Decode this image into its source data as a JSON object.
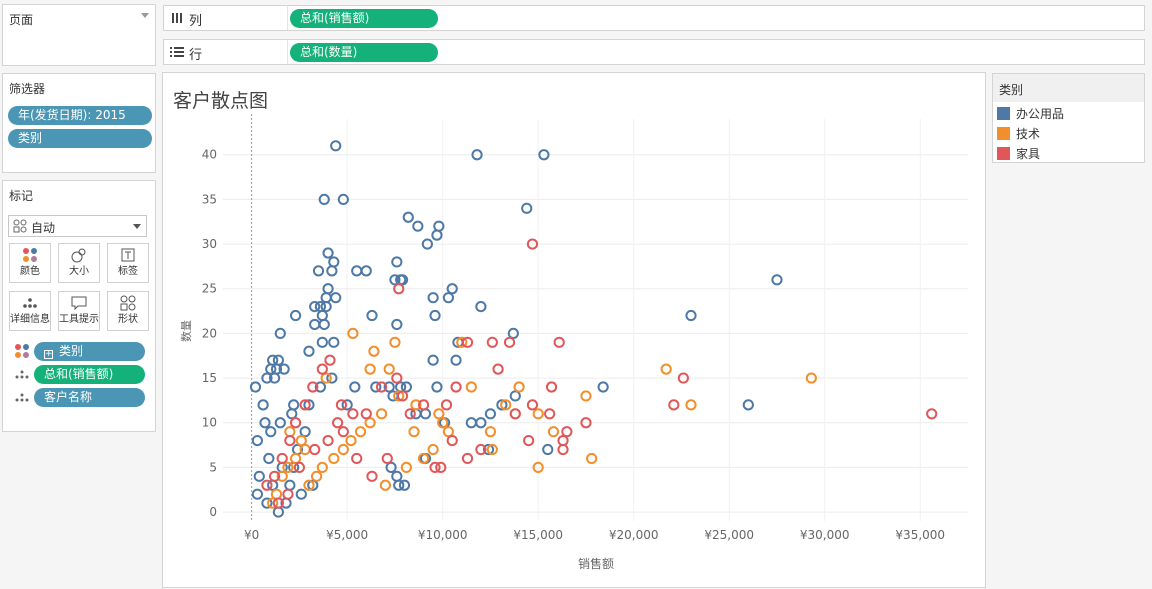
{
  "pages_panel": {
    "title": "页面"
  },
  "filters": {
    "title": "筛选器",
    "items": [
      "年(发货日期): 2015",
      "类别"
    ]
  },
  "marks": {
    "title": "标记",
    "mark_type": "自动",
    "buttons": [
      "颜色",
      "大小",
      "标签",
      "详细信息",
      "工具提示",
      "形状"
    ],
    "fields": [
      "类别",
      "总和(销售额)",
      "客户名称"
    ]
  },
  "columns_shelf": {
    "label": "列",
    "pill": "总和(销售额)"
  },
  "rows_shelf": {
    "label": "行",
    "pill": "总和(数量)"
  },
  "legend": {
    "title": "类别",
    "items": [
      {
        "name": "办公用品",
        "color": "#4e79a7"
      },
      {
        "name": "技术",
        "color": "#f28e2b"
      },
      {
        "name": "家具",
        "color": "#e15759"
      }
    ]
  },
  "chart": {
    "title": "客户散点图"
  },
  "chart_data": {
    "type": "scatter",
    "title": "客户散点图",
    "xlabel": "销售额",
    "ylabel": "数量",
    "xlim": [
      -1500,
      37500
    ],
    "ylim": [
      -1,
      44
    ],
    "x_ticks": [
      0,
      5000,
      10000,
      15000,
      20000,
      25000,
      30000,
      35000
    ],
    "x_tick_labels": [
      "¥0",
      "¥5,000",
      "¥10,000",
      "¥15,000",
      "¥20,000",
      "¥25,000",
      "¥30,000",
      "¥35,000"
    ],
    "y_ticks": [
      0,
      5,
      10,
      15,
      20,
      25,
      30,
      35,
      40
    ],
    "y_tick_labels": [
      "0",
      "5",
      "10",
      "15",
      "20",
      "25",
      "30",
      "35",
      "40"
    ],
    "grid": true,
    "legend_position": "right",
    "series": [
      {
        "name": "办公用品",
        "color": "#4e79a7",
        "points": [
          [
            4400,
            41
          ],
          [
            11800,
            40
          ],
          [
            15300,
            40
          ],
          [
            3800,
            35
          ],
          [
            4800,
            35
          ],
          [
            14400,
            34
          ],
          [
            8200,
            33
          ],
          [
            9800,
            32
          ],
          [
            8700,
            32
          ],
          [
            9700,
            31
          ],
          [
            9200,
            30
          ],
          [
            4000,
            29
          ],
          [
            4300,
            28
          ],
          [
            7600,
            28
          ],
          [
            3500,
            27
          ],
          [
            5500,
            27
          ],
          [
            6000,
            27
          ],
          [
            4200,
            27
          ],
          [
            27500,
            26
          ],
          [
            7800,
            26
          ],
          [
            7900,
            26
          ],
          [
            7500,
            26
          ],
          [
            4000,
            25
          ],
          [
            10500,
            25
          ],
          [
            3900,
            24
          ],
          [
            4400,
            24
          ],
          [
            9500,
            24
          ],
          [
            10300,
            24
          ],
          [
            3300,
            23
          ],
          [
            3900,
            23
          ],
          [
            3600,
            23
          ],
          [
            12000,
            23
          ],
          [
            6300,
            22
          ],
          [
            23000,
            22
          ],
          [
            9600,
            22
          ],
          [
            2300,
            22
          ],
          [
            3700,
            22
          ],
          [
            3300,
            21
          ],
          [
            3800,
            21
          ],
          [
            7600,
            21
          ],
          [
            1500,
            20
          ],
          [
            13700,
            20
          ],
          [
            3700,
            19
          ],
          [
            4300,
            19
          ],
          [
            10800,
            19
          ],
          [
            3000,
            18
          ],
          [
            1100,
            17
          ],
          [
            1400,
            17
          ],
          [
            9500,
            17
          ],
          [
            10700,
            17
          ],
          [
            1000,
            16
          ],
          [
            1300,
            16
          ],
          [
            1700,
            16
          ],
          [
            1200,
            15
          ],
          [
            800,
            15
          ],
          [
            4200,
            15
          ],
          [
            5400,
            14
          ],
          [
            3600,
            14
          ],
          [
            6500,
            14
          ],
          [
            7200,
            14
          ],
          [
            7800,
            14
          ],
          [
            8100,
            14
          ],
          [
            9700,
            14
          ],
          [
            18400,
            14
          ],
          [
            13800,
            13
          ],
          [
            7400,
            13
          ],
          [
            13100,
            12
          ],
          [
            26000,
            12
          ],
          [
            3000,
            12
          ],
          [
            2200,
            12
          ],
          [
            5000,
            12
          ],
          [
            8600,
            11
          ],
          [
            9100,
            11
          ],
          [
            12500,
            11
          ],
          [
            11500,
            10
          ],
          [
            12000,
            10
          ],
          [
            10100,
            10
          ],
          [
            12400,
            7
          ],
          [
            15500,
            7
          ],
          [
            9100,
            6
          ],
          [
            7300,
            5
          ],
          [
            7600,
            4
          ],
          [
            7700,
            3
          ],
          [
            8000,
            3
          ],
          [
            200,
            14
          ],
          [
            600,
            12
          ],
          [
            700,
            10
          ],
          [
            300,
            8
          ],
          [
            1000,
            9
          ],
          [
            1500,
            10
          ],
          [
            2100,
            11
          ],
          [
            900,
            6
          ],
          [
            1600,
            5
          ],
          [
            400,
            4
          ],
          [
            1100,
            3
          ],
          [
            2000,
            3
          ],
          [
            300,
            2
          ],
          [
            800,
            1
          ],
          [
            1400,
            0
          ],
          [
            1800,
            1
          ],
          [
            2600,
            2
          ],
          [
            2400,
            7
          ],
          [
            2800,
            9
          ],
          [
            2200,
            5
          ],
          [
            3200,
            3
          ]
        ]
      },
      {
        "name": "技术",
        "color": "#f28e2b",
        "points": [
          [
            29300,
            15
          ],
          [
            21700,
            16
          ],
          [
            23000,
            12
          ],
          [
            17500,
            13
          ],
          [
            17800,
            6
          ],
          [
            15000,
            5
          ],
          [
            15000,
            11
          ],
          [
            15800,
            9
          ],
          [
            14000,
            14
          ],
          [
            13300,
            12
          ],
          [
            13800,
            11
          ],
          [
            12500,
            9
          ],
          [
            12600,
            7
          ],
          [
            11500,
            14
          ],
          [
            11000,
            19
          ],
          [
            10000,
            10
          ],
          [
            10300,
            9
          ],
          [
            9500,
            7
          ],
          [
            9000,
            6
          ],
          [
            8600,
            12
          ],
          [
            7500,
            19
          ],
          [
            7200,
            16
          ],
          [
            6200,
            16
          ],
          [
            6400,
            18
          ],
          [
            5300,
            20
          ],
          [
            3900,
            15
          ],
          [
            7700,
            13
          ],
          [
            6800,
            11
          ],
          [
            6200,
            10
          ],
          [
            5700,
            9
          ],
          [
            5200,
            8
          ],
          [
            4800,
            7
          ],
          [
            4300,
            6
          ],
          [
            3700,
            5
          ],
          [
            3400,
            4
          ],
          [
            3000,
            3
          ],
          [
            2600,
            8
          ],
          [
            2300,
            6
          ],
          [
            1900,
            5
          ],
          [
            1600,
            4
          ],
          [
            1300,
            2
          ],
          [
            1100,
            1
          ],
          [
            2000,
            9
          ],
          [
            2800,
            7
          ],
          [
            8500,
            9
          ],
          [
            8100,
            5
          ],
          [
            9800,
            11
          ],
          [
            7000,
            3
          ]
        ]
      },
      {
        "name": "家具",
        "color": "#e15759",
        "points": [
          [
            35600,
            11
          ],
          [
            22600,
            15
          ],
          [
            22100,
            12
          ],
          [
            16100,
            19
          ],
          [
            14700,
            30
          ],
          [
            16300,
            7
          ],
          [
            16500,
            9
          ],
          [
            15700,
            14
          ],
          [
            15600,
            11
          ],
          [
            14500,
            8
          ],
          [
            17500,
            10
          ],
          [
            16300,
            8
          ],
          [
            14700,
            12
          ],
          [
            13800,
            11
          ],
          [
            13500,
            19
          ],
          [
            12600,
            19
          ],
          [
            12900,
            16
          ],
          [
            11300,
            19
          ],
          [
            10700,
            14
          ],
          [
            10200,
            12
          ],
          [
            9000,
            12
          ],
          [
            8300,
            11
          ],
          [
            7900,
            13
          ],
          [
            7700,
            25
          ],
          [
            7600,
            15
          ],
          [
            6800,
            14
          ],
          [
            6000,
            11
          ],
          [
            5300,
            11
          ],
          [
            4700,
            12
          ],
          [
            4500,
            10
          ],
          [
            4100,
            17
          ],
          [
            3700,
            16
          ],
          [
            3200,
            14
          ],
          [
            2800,
            12
          ],
          [
            2300,
            10
          ],
          [
            2000,
            8
          ],
          [
            1600,
            6
          ],
          [
            1200,
            4
          ],
          [
            800,
            3
          ],
          [
            2500,
            5
          ],
          [
            3300,
            7
          ],
          [
            4000,
            8
          ],
          [
            4800,
            9
          ],
          [
            5500,
            6
          ],
          [
            6300,
            4
          ],
          [
            7100,
            6
          ],
          [
            9900,
            5
          ],
          [
            9600,
            5
          ],
          [
            11300,
            6
          ],
          [
            10500,
            8
          ],
          [
            12000,
            7
          ],
          [
            1400,
            1
          ],
          [
            1900,
            2
          ]
        ]
      }
    ]
  }
}
